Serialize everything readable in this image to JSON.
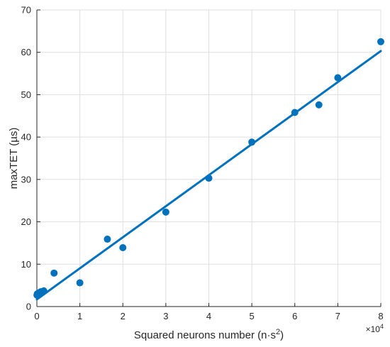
{
  "chart_data": {
    "type": "scatter",
    "xlabel": "Squared neurons number (n·s",
    "xlabel_superscript": "2",
    "xlabel_suffix": ")",
    "ylabel": "maxTET (µs)",
    "x_exponent_label": "×10",
    "x_exponent_power": "4",
    "x_multiplier": 10000,
    "xlim": [
      0,
      8
    ],
    "ylim": [
      0,
      70
    ],
    "x_ticks": [
      0,
      1,
      2,
      3,
      4,
      5,
      6,
      7,
      8
    ],
    "y_ticks": [
      0,
      10,
      20,
      30,
      40,
      50,
      60,
      70
    ],
    "grid": true,
    "colors": {
      "series": "#0072BD",
      "grid": "#dfdfdf",
      "axis": "#262626"
    },
    "points": {
      "x": [
        0.0025,
        0.01,
        0.04,
        0.09,
        0.16,
        0.4,
        1.0,
        1.64,
        2.0,
        3.0,
        4.0,
        5.0,
        6.0,
        6.56,
        7.0,
        8.0
      ],
      "y": [
        2.7,
        3.0,
        3.2,
        3.5,
        3.7,
        7.9,
        5.6,
        15.9,
        13.9,
        22.3,
        30.3,
        38.8,
        45.8,
        47.6,
        54.0,
        62.5
      ]
    },
    "fit_line": {
      "x": [
        0.0,
        8.0
      ],
      "y": [
        1.7,
        60.3
      ]
    }
  }
}
